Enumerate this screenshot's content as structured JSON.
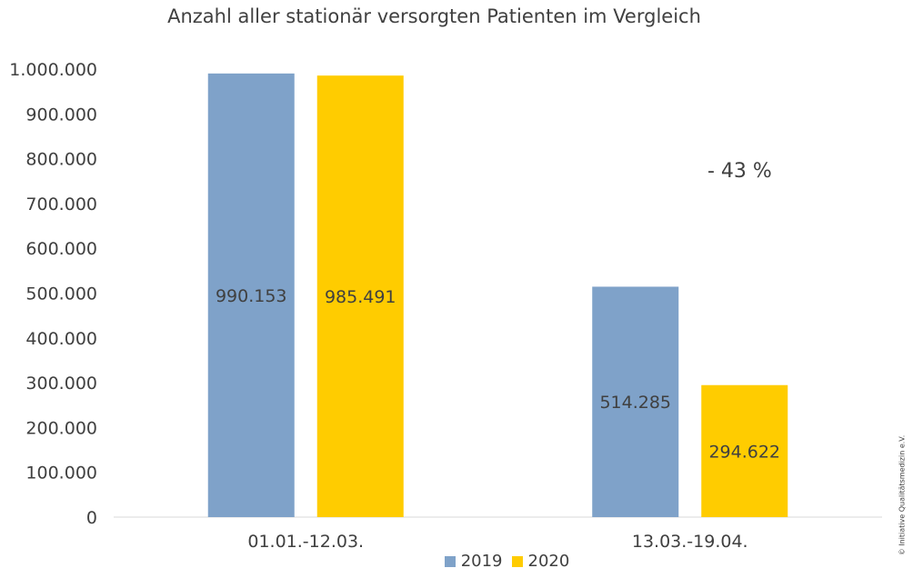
{
  "chart_data": {
    "type": "bar",
    "title": "Anzahl aller stationär versorgten Patienten im Vergleich",
    "categories": [
      "01.01.-12.03.",
      "13.03.-19.04."
    ],
    "series": [
      {
        "name": "2019",
        "values": [
          990153,
          514285
        ],
        "labels": [
          "990.153",
          "514.285"
        ],
        "color": "#7fa2c9"
      },
      {
        "name": "2020",
        "values": [
          985491,
          294622
        ],
        "labels": [
          "985.491",
          "294.622"
        ],
        "color": "#ffcc00"
      }
    ],
    "ylim": [
      0,
      1000000
    ],
    "yticks": [
      0,
      100000,
      200000,
      300000,
      400000,
      500000,
      600000,
      700000,
      800000,
      900000,
      1000000
    ],
    "ytick_labels": [
      "0",
      "100.000",
      "200.000",
      "300.000",
      "400.000",
      "500.000",
      "600.000",
      "700.000",
      "800.000",
      "900.000",
      "1.000.000"
    ],
    "annotation": "- 43 %",
    "legend_position": "bottom",
    "grid": false
  },
  "copyright": "© Initiative Qualitätsmedizin e.V."
}
